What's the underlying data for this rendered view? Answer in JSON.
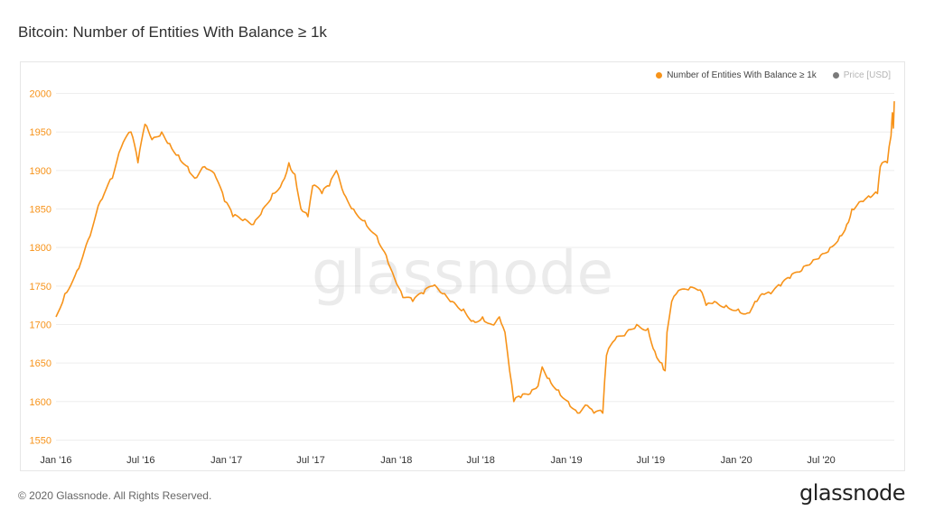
{
  "header": {
    "title": "Bitcoin: Number of Entities With Balance ≥ 1k"
  },
  "legend": [
    {
      "label": "Number of Entities With Balance ≥ 1k",
      "color": "#f7931a"
    },
    {
      "label": "Price [USD]",
      "color": "#7a7a7a"
    }
  ],
  "footer": {
    "copyright": "© 2020 Glassnode. All Rights Reserved.",
    "brand": "glassnode"
  },
  "watermark": "glassnode",
  "chart_data": {
    "type": "line",
    "title": "Bitcoin: Number of Entities With Balance ≥ 1k",
    "x_tick_labels": [
      "Jan '16",
      "Jul '16",
      "Jan '17",
      "Jul '17",
      "Jan '18",
      "Jul '18",
      "Jan '19",
      "Jul '19",
      "Jan '20",
      "Jul '20"
    ],
    "y_ticks": [
      1550,
      1600,
      1650,
      1700,
      1750,
      1800,
      1850,
      1900,
      1950,
      2000
    ],
    "ylim": [
      1540,
      2010
    ],
    "xlim": [
      "2016-01-01",
      "2020-12-05"
    ],
    "grid": true,
    "legend_position": "top-right",
    "series": [
      {
        "name": "Number of Entities With Balance ≥ 1k",
        "color": "#f7931a",
        "points": [
          [
            "2016-01-01",
            1710
          ],
          [
            "2016-01-20",
            1740
          ],
          [
            "2016-02-15",
            1770
          ],
          [
            "2016-03-10",
            1810
          ],
          [
            "2016-04-05",
            1860
          ],
          [
            "2016-05-01",
            1890
          ],
          [
            "2016-05-20",
            1930
          ],
          [
            "2016-06-10",
            1950
          ],
          [
            "2016-06-25",
            1910
          ],
          [
            "2016-07-10",
            1960
          ],
          [
            "2016-07-25",
            1940
          ],
          [
            "2016-08-15",
            1950
          ],
          [
            "2016-09-01",
            1935
          ],
          [
            "2016-09-20",
            1920
          ],
          [
            "2016-10-10",
            1905
          ],
          [
            "2016-10-25",
            1890
          ],
          [
            "2016-11-15",
            1905
          ],
          [
            "2016-12-10",
            1890
          ],
          [
            "2016-12-28",
            1860
          ],
          [
            "2017-01-15",
            1840
          ],
          [
            "2017-02-05",
            1835
          ],
          [
            "2017-02-28",
            1830
          ],
          [
            "2017-03-20",
            1850
          ],
          [
            "2017-04-10",
            1870
          ],
          [
            "2017-05-01",
            1885
          ],
          [
            "2017-05-15",
            1910
          ],
          [
            "2017-05-28",
            1895
          ],
          [
            "2017-06-10",
            1850
          ],
          [
            "2017-06-25",
            1840
          ],
          [
            "2017-07-05",
            1880
          ],
          [
            "2017-07-25",
            1870
          ],
          [
            "2017-08-10",
            1880
          ],
          [
            "2017-08-25",
            1900
          ],
          [
            "2017-09-10",
            1870
          ],
          [
            "2017-10-01",
            1850
          ],
          [
            "2017-10-25",
            1835
          ],
          [
            "2017-11-20",
            1815
          ],
          [
            "2017-12-10",
            1790
          ],
          [
            "2017-12-28",
            1760
          ],
          [
            "2018-01-15",
            1735
          ],
          [
            "2018-02-05",
            1730
          ],
          [
            "2018-02-28",
            1740
          ],
          [
            "2018-03-20",
            1750
          ],
          [
            "2018-04-10",
            1740
          ],
          [
            "2018-05-01",
            1730
          ],
          [
            "2018-05-25",
            1720
          ],
          [
            "2018-06-15",
            1705
          ],
          [
            "2018-07-05",
            1710
          ],
          [
            "2018-07-25",
            1700
          ],
          [
            "2018-08-10",
            1710
          ],
          [
            "2018-08-22",
            1690
          ],
          [
            "2018-09-01",
            1640
          ],
          [
            "2018-09-10",
            1600
          ],
          [
            "2018-09-25",
            1605
          ],
          [
            "2018-10-15",
            1610
          ],
          [
            "2018-11-01",
            1620
          ],
          [
            "2018-11-10",
            1645
          ],
          [
            "2018-11-25",
            1630
          ],
          [
            "2018-12-15",
            1615
          ],
          [
            "2019-01-05",
            1600
          ],
          [
            "2019-01-25",
            1585
          ],
          [
            "2019-02-15",
            1595
          ],
          [
            "2019-03-01",
            1585
          ],
          [
            "2019-03-20",
            1585
          ],
          [
            "2019-03-28",
            1660
          ],
          [
            "2019-04-15",
            1680
          ],
          [
            "2019-05-10",
            1690
          ],
          [
            "2019-06-01",
            1700
          ],
          [
            "2019-06-25",
            1695
          ],
          [
            "2019-07-10",
            1665
          ],
          [
            "2019-07-25",
            1650
          ],
          [
            "2019-08-01",
            1640
          ],
          [
            "2019-08-05",
            1690
          ],
          [
            "2019-08-15",
            1730
          ],
          [
            "2019-08-25",
            1740
          ],
          [
            "2019-09-20",
            1745
          ],
          [
            "2019-10-15",
            1745
          ],
          [
            "2019-10-28",
            1725
          ],
          [
            "2019-11-15",
            1730
          ],
          [
            "2019-12-10",
            1725
          ],
          [
            "2020-01-05",
            1720
          ],
          [
            "2020-01-25",
            1715
          ],
          [
            "2020-02-10",
            1730
          ],
          [
            "2020-02-25",
            1740
          ],
          [
            "2020-03-15",
            1740
          ],
          [
            "2020-04-05",
            1750
          ],
          [
            "2020-04-25",
            1760
          ],
          [
            "2020-05-20",
            1770
          ],
          [
            "2020-06-10",
            1780
          ],
          [
            "2020-06-30",
            1790
          ],
          [
            "2020-07-20",
            1800
          ],
          [
            "2020-08-10",
            1815
          ],
          [
            "2020-08-25",
            1830
          ],
          [
            "2020-09-05",
            1850
          ],
          [
            "2020-09-25",
            1860
          ],
          [
            "2020-10-15",
            1865
          ],
          [
            "2020-10-30",
            1870
          ],
          [
            "2020-11-05",
            1905
          ],
          [
            "2020-11-20",
            1910
          ],
          [
            "2020-11-28",
            1945
          ],
          [
            "2020-12-01",
            1975
          ],
          [
            "2020-12-03",
            1955
          ],
          [
            "2020-12-05",
            1990
          ]
        ]
      }
    ]
  }
}
